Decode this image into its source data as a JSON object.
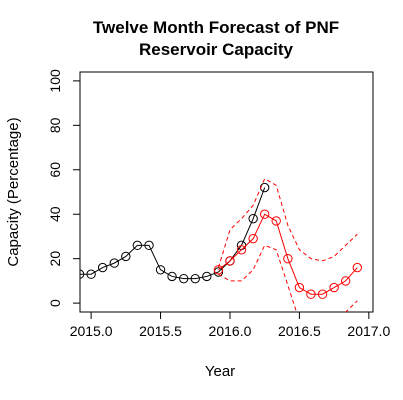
{
  "chart_data": {
    "type": "line",
    "title": "Twelve Month Forecast of PNF",
    "subtitle": "Reservoir Capacity",
    "xlabel": "Year",
    "ylabel": "Capacity (Percentage)",
    "xlim": [
      2014.92,
      2017.03
    ],
    "ylim": [
      -4,
      104
    ],
    "x_ticks": [
      2015.0,
      2015.5,
      2016.0,
      2016.5,
      2017.0
    ],
    "x_tick_labels": [
      "2015.0",
      "2015.5",
      "2016.0",
      "2016.5",
      "2017.0"
    ],
    "y_ticks": [
      0,
      20,
      40,
      60,
      80,
      100
    ],
    "y_tick_labels": [
      "0",
      "20",
      "40",
      "60",
      "80",
      "100"
    ],
    "grid": false,
    "legend": "none",
    "series": [
      {
        "style": "observed",
        "color": "#000000",
        "marker": "open-circle",
        "x": [
          2014.917,
          2015.0,
          2015.083,
          2015.167,
          2015.25,
          2015.333,
          2015.417,
          2015.5,
          2015.583,
          2015.667,
          2015.75,
          2015.833,
          2015.917,
          2016.0,
          2016.083,
          2016.167,
          2016.25
        ],
        "y": [
          13,
          13,
          16,
          18,
          21,
          26,
          26,
          15,
          12,
          11,
          11,
          12,
          14,
          19,
          26,
          38,
          52
        ]
      },
      {
        "style": "forecast",
        "color": "#ff0000",
        "marker": "open-circle",
        "x": [
          2015.917,
          2016.0,
          2016.083,
          2016.167,
          2016.25,
          2016.333,
          2016.417,
          2016.5,
          2016.583,
          2016.667,
          2016.75,
          2016.833,
          2016.917
        ],
        "y": [
          15,
          19,
          24,
          29,
          40,
          37,
          20,
          7,
          4,
          4,
          7,
          10,
          16
        ]
      },
      {
        "style": "upper-bound",
        "color": "#ff0000",
        "dash": true,
        "x": [
          2015.917,
          2016.0,
          2016.083,
          2016.167,
          2016.25,
          2016.333,
          2016.417,
          2016.5,
          2016.583,
          2016.667,
          2016.75,
          2016.833,
          2016.917
        ],
        "y": [
          16,
          33,
          38,
          44,
          56,
          53,
          35,
          24,
          20,
          19,
          21,
          26,
          31
        ]
      },
      {
        "style": "lower-bound",
        "color": "#ff0000",
        "dash": true,
        "x": [
          2015.917,
          2016.0,
          2016.083,
          2016.167,
          2016.25,
          2016.333,
          2016.417,
          2016.5,
          2016.583,
          2016.667,
          2016.75,
          2016.833,
          2016.917
        ],
        "y": [
          13,
          10,
          10,
          15,
          26,
          24,
          8,
          -8,
          -12,
          -12,
          -9,
          -4,
          1
        ]
      }
    ]
  }
}
